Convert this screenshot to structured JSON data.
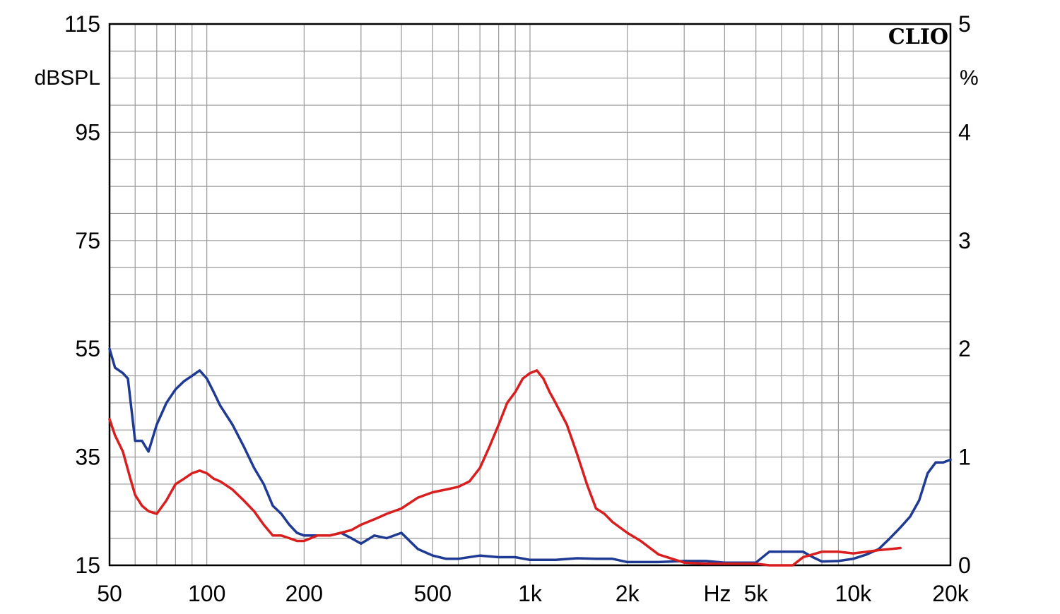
{
  "chart_data": {
    "type": "line",
    "brand": "CLIO",
    "x_scale": "log",
    "xlim": [
      50,
      20000
    ],
    "x_unit_label": "Hz",
    "x_ticks": [
      {
        "value": 50,
        "label": "50"
      },
      {
        "value": 100,
        "label": "100"
      },
      {
        "value": 200,
        "label": "200"
      },
      {
        "value": 500,
        "label": "500"
      },
      {
        "value": 1000,
        "label": "1k"
      },
      {
        "value": 2000,
        "label": "2k"
      },
      {
        "value": 5000,
        "label": "5k"
      },
      {
        "value": 10000,
        "label": "10k"
      },
      {
        "value": 20000,
        "label": "20k"
      }
    ],
    "y_left": {
      "unit_label": "dBSPL",
      "ylim": [
        15,
        115
      ],
      "ticks": [
        "115",
        "95",
        "75",
        "55",
        "35",
        "15"
      ]
    },
    "y_right": {
      "unit_label": "%",
      "ylim": [
        0,
        5
      ],
      "ticks": [
        "5",
        "4",
        "3",
        "2",
        "1",
        "0"
      ]
    },
    "grid": true,
    "series": [
      {
        "color": "#1f3a93",
        "axis": "left",
        "points": [
          [
            50,
            55
          ],
          [
            52,
            51.5
          ],
          [
            55,
            50.5
          ],
          [
            57,
            49.5
          ],
          [
            60,
            38
          ],
          [
            63,
            38
          ],
          [
            66,
            36
          ],
          [
            70,
            41
          ],
          [
            75,
            45
          ],
          [
            80,
            47.5
          ],
          [
            85,
            49
          ],
          [
            90,
            50
          ],
          [
            95,
            51
          ],
          [
            100,
            49.5
          ],
          [
            105,
            47
          ],
          [
            110,
            44.5
          ],
          [
            120,
            41
          ],
          [
            130,
            37
          ],
          [
            140,
            33
          ],
          [
            150,
            30
          ],
          [
            160,
            26
          ],
          [
            170,
            24.5
          ],
          [
            180,
            22.5
          ],
          [
            190,
            21
          ],
          [
            200,
            20.5
          ],
          [
            220,
            20.5
          ],
          [
            240,
            20.5
          ],
          [
            260,
            21
          ],
          [
            280,
            20
          ],
          [
            300,
            19
          ],
          [
            330,
            20.5
          ],
          [
            360,
            20
          ],
          [
            400,
            21
          ],
          [
            450,
            18
          ],
          [
            500,
            16.8
          ],
          [
            550,
            16.2
          ],
          [
            600,
            16.2
          ],
          [
            700,
            16.8
          ],
          [
            800,
            16.5
          ],
          [
            900,
            16.5
          ],
          [
            1000,
            16
          ],
          [
            1200,
            16
          ],
          [
            1400,
            16.3
          ],
          [
            1600,
            16.2
          ],
          [
            1800,
            16.2
          ],
          [
            2000,
            15.6
          ],
          [
            2500,
            15.6
          ],
          [
            3000,
            15.8
          ],
          [
            3500,
            15.8
          ],
          [
            4000,
            15.5
          ],
          [
            4500,
            15.5
          ],
          [
            5000,
            15.5
          ],
          [
            5500,
            17.5
          ],
          [
            6000,
            17.5
          ],
          [
            6500,
            17.5
          ],
          [
            7000,
            17.5
          ],
          [
            7500,
            16.5
          ],
          [
            8000,
            15.7
          ],
          [
            9000,
            15.8
          ],
          [
            10000,
            16.2
          ],
          [
            11000,
            17
          ],
          [
            12000,
            18
          ],
          [
            13000,
            20
          ],
          [
            14000,
            22
          ],
          [
            15000,
            24
          ],
          [
            16000,
            27
          ],
          [
            17000,
            32
          ],
          [
            18000,
            34
          ],
          [
            19000,
            34
          ],
          [
            20000,
            34.5
          ]
        ]
      },
      {
        "color": "#d81e1e",
        "axis": "left",
        "points": [
          [
            50,
            42
          ],
          [
            52,
            39
          ],
          [
            55,
            36
          ],
          [
            58,
            31
          ],
          [
            60,
            28
          ],
          [
            63,
            26
          ],
          [
            66,
            25
          ],
          [
            70,
            24.5
          ],
          [
            75,
            27
          ],
          [
            80,
            30
          ],
          [
            85,
            31
          ],
          [
            90,
            32
          ],
          [
            95,
            32.5
          ],
          [
            100,
            32
          ],
          [
            105,
            31
          ],
          [
            110,
            30.5
          ],
          [
            120,
            29
          ],
          [
            130,
            27
          ],
          [
            140,
            25
          ],
          [
            150,
            22.5
          ],
          [
            160,
            20.5
          ],
          [
            170,
            20.5
          ],
          [
            180,
            20
          ],
          [
            190,
            19.5
          ],
          [
            200,
            19.5
          ],
          [
            220,
            20.5
          ],
          [
            240,
            20.5
          ],
          [
            260,
            21
          ],
          [
            280,
            21.5
          ],
          [
            300,
            22.5
          ],
          [
            330,
            23.5
          ],
          [
            360,
            24.5
          ],
          [
            400,
            25.5
          ],
          [
            450,
            27.5
          ],
          [
            500,
            28.5
          ],
          [
            550,
            29
          ],
          [
            600,
            29.5
          ],
          [
            650,
            30.5
          ],
          [
            700,
            33
          ],
          [
            750,
            37
          ],
          [
            800,
            41
          ],
          [
            850,
            45
          ],
          [
            900,
            47
          ],
          [
            950,
            49.5
          ],
          [
            1000,
            50.5
          ],
          [
            1050,
            51
          ],
          [
            1100,
            49.5
          ],
          [
            1150,
            47
          ],
          [
            1200,
            45
          ],
          [
            1300,
            41
          ],
          [
            1400,
            35.5
          ],
          [
            1500,
            30
          ],
          [
            1600,
            25.5
          ],
          [
            1700,
            24.5
          ],
          [
            1800,
            23
          ],
          [
            2000,
            21
          ],
          [
            2200,
            19.5
          ],
          [
            2500,
            17
          ],
          [
            3000,
            15.5
          ],
          [
            3500,
            15.3
          ],
          [
            4000,
            15.3
          ],
          [
            4500,
            15.3
          ],
          [
            5000,
            15.3
          ],
          [
            5500,
            15
          ],
          [
            6000,
            15
          ],
          [
            6500,
            15
          ],
          [
            7000,
            16.5
          ],
          [
            8000,
            17.5
          ],
          [
            9000,
            17.5
          ],
          [
            10000,
            17.2
          ],
          [
            11000,
            17.5
          ],
          [
            12000,
            17.8
          ],
          [
            13000,
            18
          ],
          [
            14000,
            18.2
          ]
        ]
      }
    ]
  }
}
